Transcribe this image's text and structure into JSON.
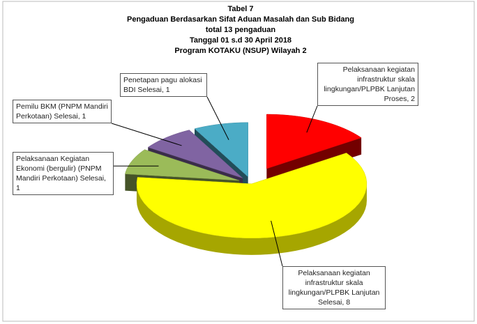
{
  "chart_data": {
    "type": "pie3d",
    "title_lines": [
      "Tabel 7",
      "Pengaduan Berdasarkan Sifat Aduan Masalah dan Sub Bidang",
      "total 13 pengaduan",
      "Tanggal 01 s.d 30 April 2018",
      "Program KOTAKU (NSUP) Wilayah 2"
    ],
    "categories": [
      "Pelaksanaan kegiatan infrastruktur skala lingkungan/PLPBK Lanjutan Proses, 2",
      "Pelaksanaan kegiatan infrastruktur skala lingkungan/PLPBK Lanjutan Selesai, 8",
      "Pelaksanaan Kegiatan Ekonomi (bergulir) (PNPM Mandiri Perkotaan) Selesai, 1",
      "Pemilu BKM (PNPM Mandiri Perkotaan) Selesai, 1",
      "Penetapan pagu alokasi BDI Selesai, 1"
    ],
    "values": [
      2,
      8,
      1,
      1,
      1
    ],
    "colors": [
      "#ff0000",
      "#ffff00",
      "#9bbb59",
      "#8064a2",
      "#4bacc6"
    ]
  }
}
